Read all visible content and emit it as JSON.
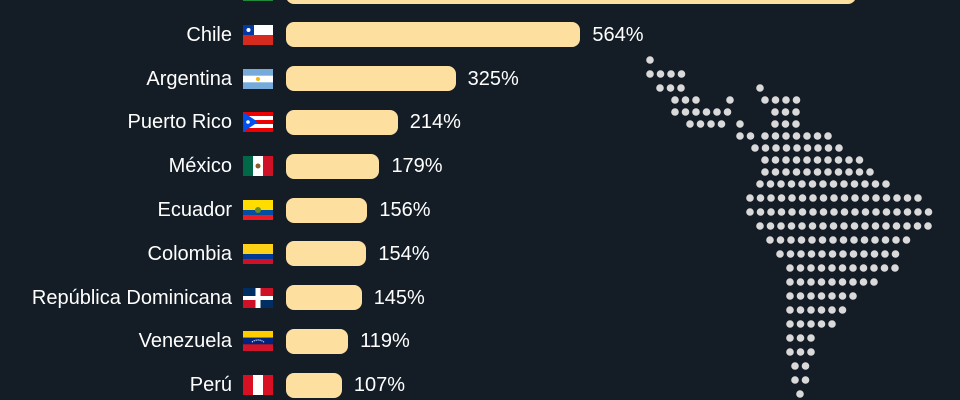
{
  "chart_data": {
    "type": "bar",
    "orientation": "horizontal",
    "categories": [
      "",
      "Chile",
      "Argentina",
      "Puerto Rico",
      "México",
      "Ecuador",
      "Colombia",
      "República Dominicana",
      "Venezuela",
      "Perú"
    ],
    "values": [
      null,
      564,
      325,
      214,
      179,
      156,
      154,
      145,
      119,
      107
    ],
    "value_labels": [
      "",
      "564%",
      "325%",
      "214%",
      "179%",
      "156%",
      "154%",
      "145%",
      "119%",
      "107%"
    ],
    "flags": [
      "green",
      "chile",
      "argentina",
      "puerto-rico",
      "mexico",
      "ecuador",
      "colombia",
      "dominican-republic",
      "venezuela",
      "peru"
    ],
    "bar_color": "#fddf9f",
    "background": "#141d26",
    "map_dot_color": "#d9d9d9"
  }
}
